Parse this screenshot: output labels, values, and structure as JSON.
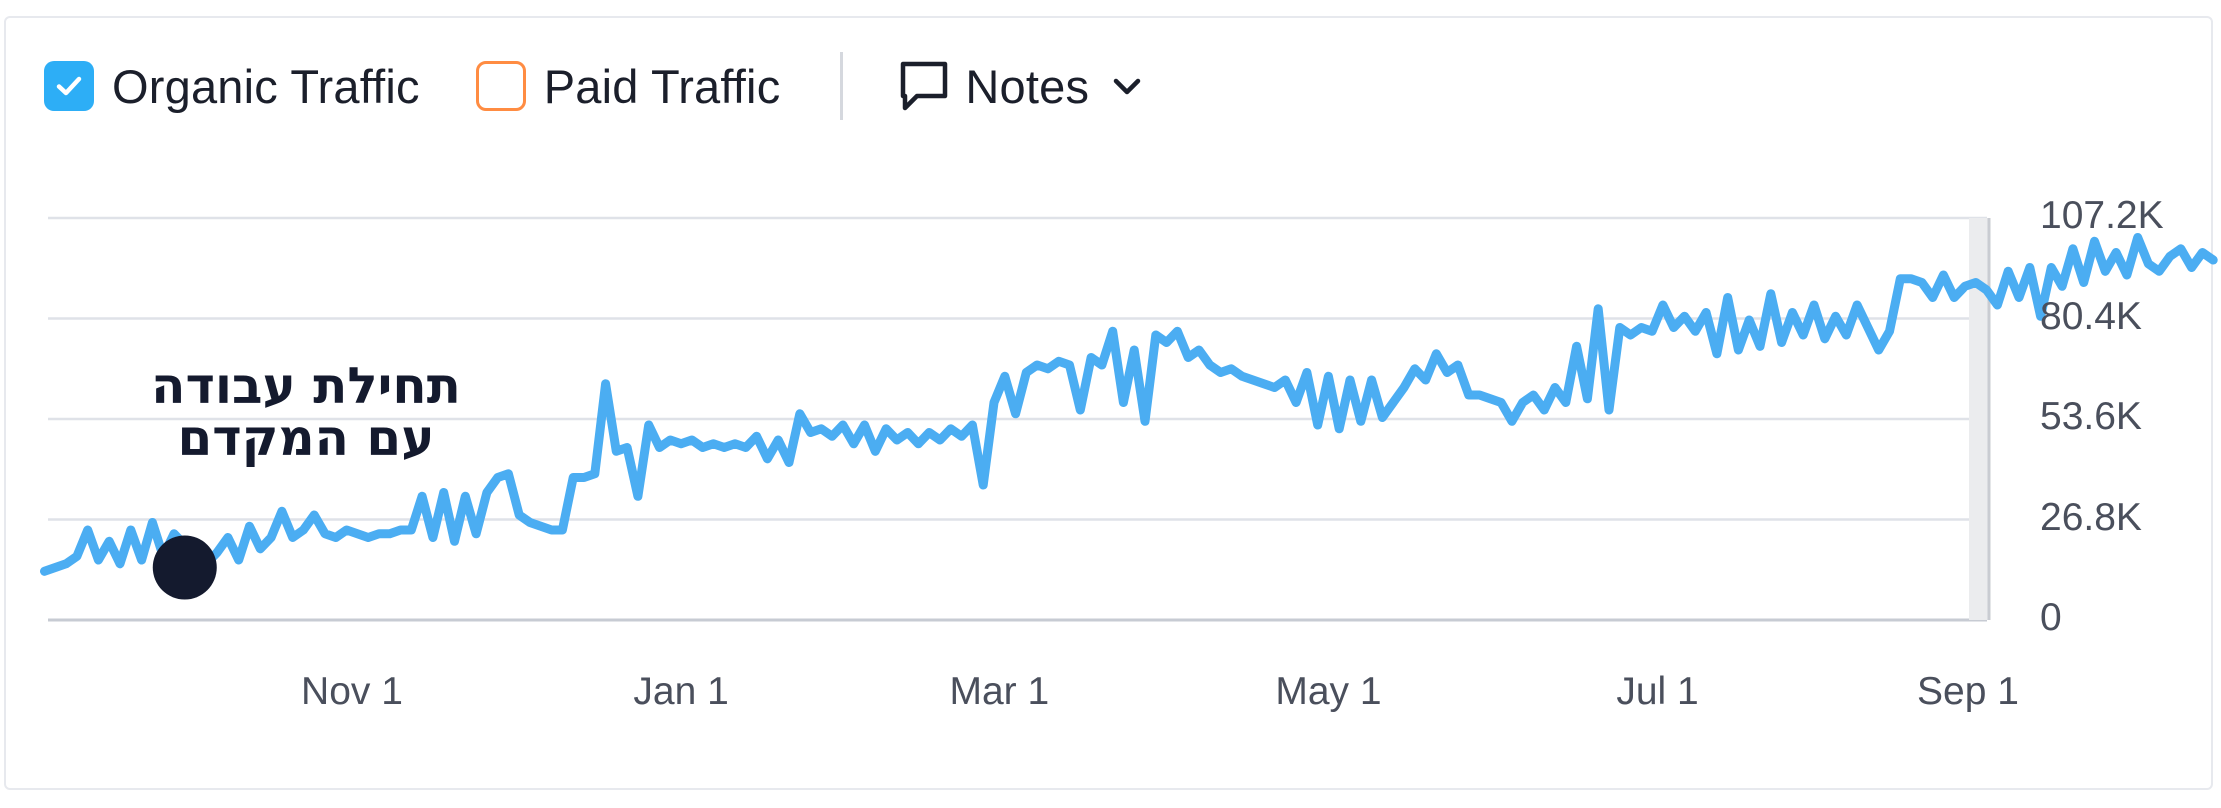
{
  "legend": {
    "organic_label": "Organic Traffic",
    "organic_checked": true,
    "paid_label": "Paid Traffic",
    "paid_checked": false,
    "notes_label": "Notes"
  },
  "colors": {
    "organic": "#4badf2",
    "checkbox_checked": "#2daef6",
    "paid_border": "#ff8c42",
    "grid": "#dfe2e8",
    "axis": "#c7cbd3",
    "text": "#1b1f2b",
    "tick": "#4a4f5c",
    "marker": "#141a2e"
  },
  "annotation": {
    "line1": "תחילת עבודה",
    "line2": "עם המקדם"
  },
  "chart_data": {
    "type": "line",
    "title": "",
    "xlabel": "",
    "ylabel": "",
    "ylim": [
      0,
      107200
    ],
    "yticks": [
      "107.2K",
      "80.4K",
      "53.6K",
      "26.8K",
      "0"
    ],
    "ytick_values": [
      107200,
      80400,
      53600,
      26800,
      0
    ],
    "xticks": [
      "Nov 1",
      "Jan 1",
      "Mar 1",
      "May 1",
      "Jul 1",
      "Sep 1"
    ],
    "xtick_days": [
      0,
      61,
      120,
      181,
      242,
      304
    ],
    "grid": true,
    "marker": {
      "day": -31,
      "value": 14000
    },
    "series": [
      {
        "name": "Organic Traffic",
        "points": [
          [
            -57,
            13000
          ],
          [
            -55,
            14000
          ],
          [
            -53,
            15000
          ],
          [
            -51,
            17000
          ],
          [
            -49,
            24000
          ],
          [
            -47,
            16000
          ],
          [
            -45,
            21000
          ],
          [
            -43,
            15000
          ],
          [
            -41,
            24000
          ],
          [
            -39,
            16000
          ],
          [
            -37,
            26000
          ],
          [
            -35,
            17000
          ],
          [
            -33,
            23000
          ],
          [
            -31,
            20000
          ],
          [
            -29,
            17000
          ],
          [
            -27,
            15000
          ],
          [
            -25,
            18000
          ],
          [
            -23,
            22000
          ],
          [
            -21,
            16000
          ],
          [
            -19,
            25000
          ],
          [
            -17,
            19000
          ],
          [
            -15,
            22000
          ],
          [
            -13,
            29000
          ],
          [
            -11,
            22000
          ],
          [
            -9,
            24000
          ],
          [
            -7,
            28000
          ],
          [
            -5,
            23000
          ],
          [
            -3,
            22000
          ],
          [
            -1,
            24000
          ],
          [
            1,
            23000
          ],
          [
            3,
            22000
          ],
          [
            5,
            23000
          ],
          [
            7,
            23000
          ],
          [
            9,
            24000
          ],
          [
            11,
            24000
          ],
          [
            13,
            33000
          ],
          [
            15,
            22000
          ],
          [
            17,
            34000
          ],
          [
            19,
            21000
          ],
          [
            21,
            33000
          ],
          [
            23,
            23000
          ],
          [
            25,
            34000
          ],
          [
            27,
            38000
          ],
          [
            29,
            39000
          ],
          [
            31,
            28000
          ],
          [
            33,
            26000
          ],
          [
            35,
            25000
          ],
          [
            37,
            24000
          ],
          [
            39,
            24000
          ],
          [
            41,
            38000
          ],
          [
            43,
            38000
          ],
          [
            45,
            39000
          ],
          [
            47,
            63000
          ],
          [
            49,
            45000
          ],
          [
            51,
            46000
          ],
          [
            53,
            33000
          ],
          [
            55,
            52000
          ],
          [
            57,
            46000
          ],
          [
            59,
            48000
          ],
          [
            61,
            47000
          ],
          [
            63,
            48000
          ],
          [
            65,
            46000
          ],
          [
            67,
            47000
          ],
          [
            69,
            46000
          ],
          [
            71,
            47000
          ],
          [
            73,
            46000
          ],
          [
            75,
            49000
          ],
          [
            77,
            43000
          ],
          [
            79,
            48000
          ],
          [
            81,
            42000
          ],
          [
            83,
            55000
          ],
          [
            85,
            50000
          ],
          [
            87,
            51000
          ],
          [
            89,
            49000
          ],
          [
            91,
            52000
          ],
          [
            93,
            47000
          ],
          [
            95,
            52000
          ],
          [
            97,
            45000
          ],
          [
            99,
            51000
          ],
          [
            101,
            48000
          ],
          [
            103,
            50000
          ],
          [
            105,
            47000
          ],
          [
            107,
            50000
          ],
          [
            109,
            48000
          ],
          [
            111,
            51000
          ],
          [
            113,
            49000
          ],
          [
            115,
            52000
          ],
          [
            117,
            36000
          ],
          [
            119,
            58000
          ],
          [
            121,
            65000
          ],
          [
            123,
            55000
          ],
          [
            125,
            66000
          ],
          [
            127,
            68000
          ],
          [
            129,
            67000
          ],
          [
            131,
            69000
          ],
          [
            133,
            68000
          ],
          [
            135,
            56000
          ],
          [
            137,
            70000
          ],
          [
            139,
            68000
          ],
          [
            141,
            77000
          ],
          [
            143,
            58000
          ],
          [
            145,
            72000
          ],
          [
            147,
            53000
          ],
          [
            149,
            76000
          ],
          [
            151,
            74000
          ],
          [
            153,
            77000
          ],
          [
            155,
            70000
          ],
          [
            157,
            72000
          ],
          [
            159,
            68000
          ],
          [
            161,
            66000
          ],
          [
            163,
            67000
          ],
          [
            165,
            65000
          ],
          [
            167,
            64000
          ],
          [
            169,
            63000
          ],
          [
            171,
            62000
          ],
          [
            173,
            64000
          ],
          [
            175,
            58000
          ],
          [
            177,
            66000
          ],
          [
            179,
            52000
          ],
          [
            181,
            65000
          ],
          [
            183,
            51000
          ],
          [
            185,
            64000
          ],
          [
            187,
            53000
          ],
          [
            189,
            64000
          ],
          [
            191,
            54000
          ],
          [
            193,
            58000
          ],
          [
            195,
            62000
          ],
          [
            197,
            67000
          ],
          [
            199,
            64000
          ],
          [
            201,
            71000
          ],
          [
            203,
            66000
          ],
          [
            205,
            68000
          ],
          [
            207,
            60000
          ],
          [
            209,
            60000
          ],
          [
            211,
            59000
          ],
          [
            213,
            58000
          ],
          [
            215,
            53000
          ],
          [
            217,
            58000
          ],
          [
            219,
            60000
          ],
          [
            221,
            56000
          ],
          [
            223,
            62000
          ],
          [
            225,
            58000
          ],
          [
            227,
            73000
          ],
          [
            229,
            59000
          ],
          [
            231,
            83000
          ],
          [
            233,
            56000
          ],
          [
            235,
            78000
          ],
          [
            237,
            76000
          ],
          [
            239,
            78000
          ],
          [
            241,
            77000
          ],
          [
            243,
            84000
          ],
          [
            245,
            78000
          ],
          [
            247,
            81000
          ],
          [
            249,
            77000
          ],
          [
            251,
            82000
          ],
          [
            253,
            71000
          ],
          [
            255,
            86000
          ],
          [
            257,
            72000
          ],
          [
            259,
            80000
          ],
          [
            261,
            73000
          ],
          [
            263,
            87000
          ],
          [
            265,
            74000
          ],
          [
            267,
            82000
          ],
          [
            269,
            76000
          ],
          [
            271,
            84000
          ],
          [
            273,
            75000
          ],
          [
            275,
            81000
          ],
          [
            277,
            76000
          ],
          [
            279,
            84000
          ],
          [
            281,
            78000
          ],
          [
            283,
            72000
          ],
          [
            285,
            77000
          ],
          [
            287,
            91000
          ],
          [
            289,
            91000
          ],
          [
            291,
            90000
          ],
          [
            293,
            86000
          ],
          [
            295,
            92000
          ],
          [
            297,
            86000
          ],
          [
            299,
            89000
          ],
          [
            301,
            90000
          ],
          [
            303,
            88000
          ],
          [
            305,
            84000
          ],
          [
            307,
            93000
          ],
          [
            309,
            86000
          ],
          [
            311,
            94000
          ],
          [
            313,
            81000
          ],
          [
            315,
            94000
          ],
          [
            317,
            89000
          ],
          [
            319,
            99000
          ],
          [
            321,
            90000
          ],
          [
            323,
            101000
          ],
          [
            325,
            93000
          ],
          [
            327,
            98000
          ],
          [
            329,
            92000
          ],
          [
            331,
            102000
          ],
          [
            333,
            95000
          ],
          [
            335,
            93000
          ],
          [
            337,
            97000
          ],
          [
            339,
            99000
          ],
          [
            341,
            94000
          ],
          [
            343,
            98000
          ],
          [
            345,
            96000
          ]
        ]
      }
    ]
  }
}
